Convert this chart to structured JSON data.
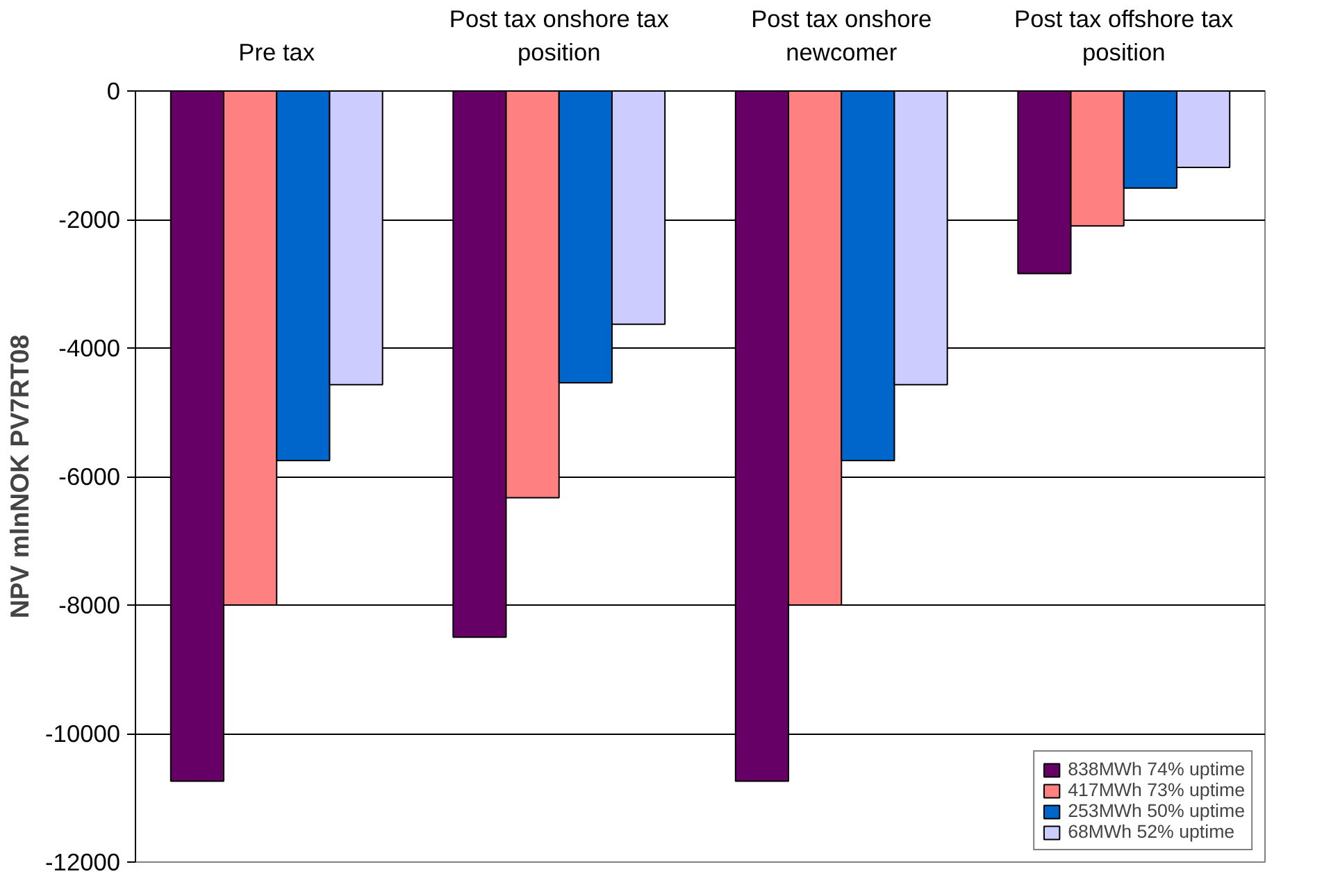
{
  "chart_data": {
    "type": "bar",
    "categories": [
      "Pre tax",
      "Post tax onshore tax position",
      "Post tax onshore newcomer",
      "Post tax offshore tax position"
    ],
    "ylabel": "NPV mlnNOK PV7RT08",
    "series": [
      {
        "name": "838MWh 74% uptime",
        "color": "#660066",
        "values": [
          -10740,
          -8500,
          -10740,
          -2840
        ]
      },
      {
        "name": "417MWh 73% uptime",
        "color": "#ff8080",
        "values": [
          -8000,
          -6330,
          -8000,
          -2100
        ]
      },
      {
        "name": "253MWh 50% uptime",
        "color": "#0066cc",
        "values": [
          -5750,
          -4540,
          -5750,
          -1510
        ]
      },
      {
        "name": "68MWh 52% uptime",
        "color": "#ccccff",
        "values": [
          -4570,
          -3630,
          -4570,
          -1190
        ]
      }
    ],
    "ylim": [
      -12000,
      0
    ],
    "yticks": [
      -12000,
      -10000,
      -8000,
      -6000,
      -4000,
      -2000,
      0
    ],
    "grid": "y",
    "legend": "bottom right"
  }
}
